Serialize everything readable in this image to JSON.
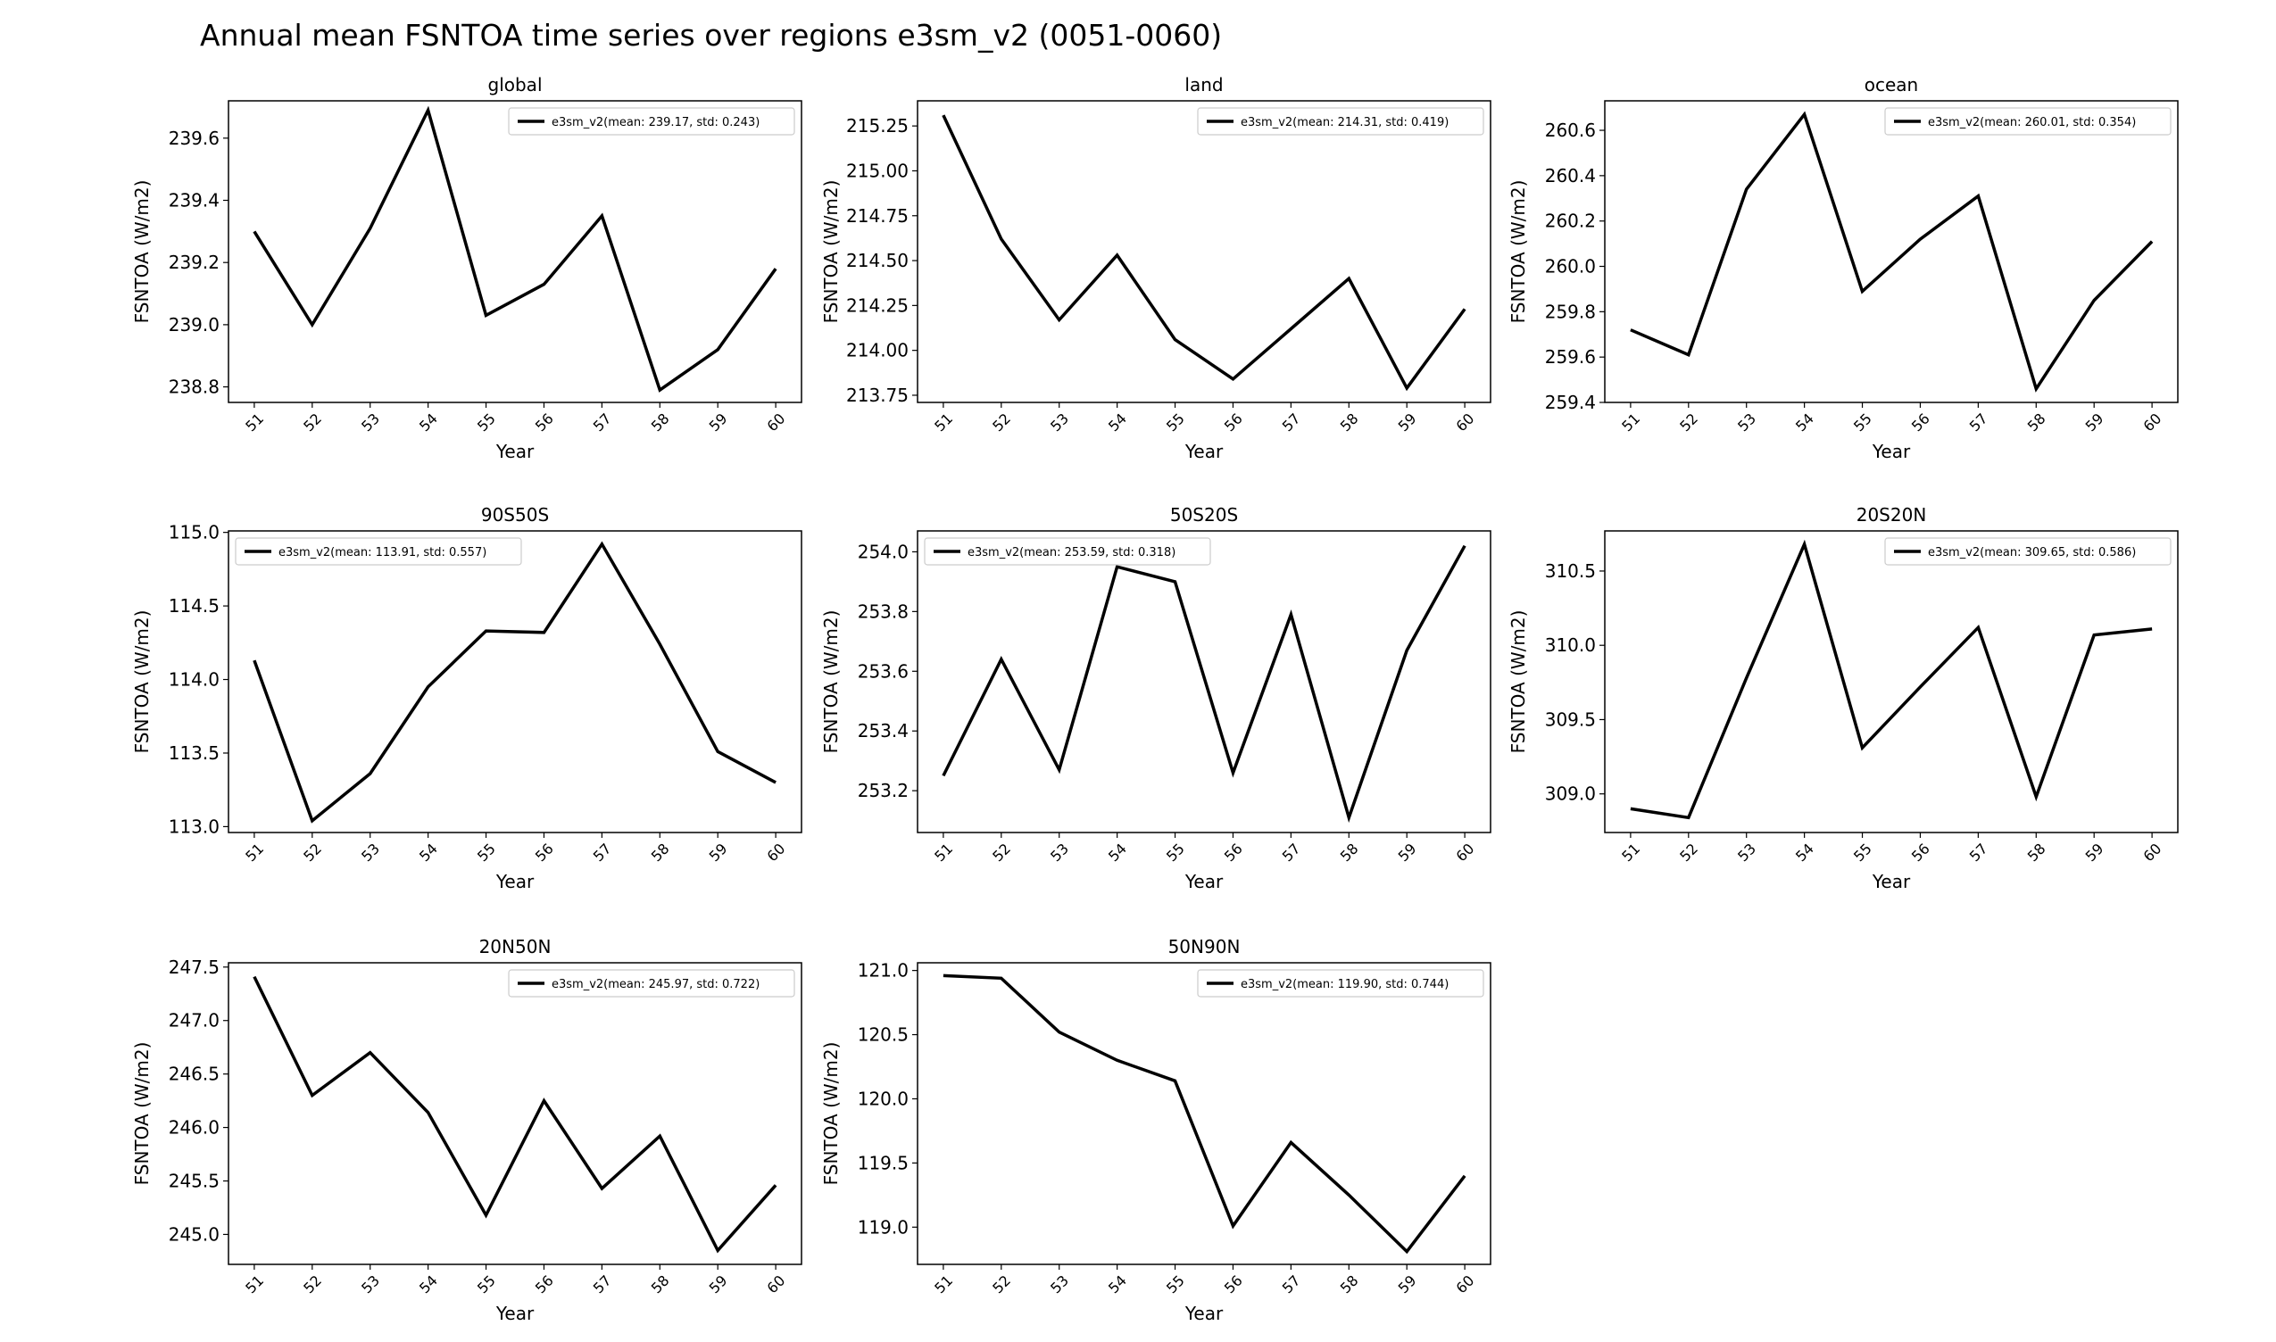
{
  "figure": {
    "title": "Annual mean FSNTOA time series over regions e3sm_v2 (0051-0060)"
  },
  "colors": {
    "line": "#000000",
    "background": "#ffffff",
    "legend_border": "#cccccc"
  },
  "chart_data": [
    {
      "type": "line",
      "title": "global",
      "xlabel": "Year",
      "ylabel": "FSNTOA (W/m2)",
      "x": [
        "51",
        "52",
        "53",
        "54",
        "55",
        "56",
        "57",
        "58",
        "59",
        "60"
      ],
      "series": [
        {
          "name": "e3sm_v2(mean: 239.17, std: 0.243)",
          "values": [
            239.3,
            239.0,
            239.31,
            239.69,
            239.03,
            239.13,
            239.35,
            238.79,
            238.92,
            239.18
          ]
        }
      ],
      "ylim": [
        238.75,
        239.72
      ],
      "yticks": [
        "238.8",
        "239.0",
        "239.2",
        "239.4",
        "239.6"
      ],
      "legend": "top-right",
      "grid": false
    },
    {
      "type": "line",
      "title": "land",
      "xlabel": "Year",
      "ylabel": "FSNTOA (W/m2)",
      "x": [
        "51",
        "52",
        "53",
        "54",
        "55",
        "56",
        "57",
        "58",
        "59",
        "60"
      ],
      "series": [
        {
          "name": "e3sm_v2(mean: 214.31, std: 0.419)",
          "values": [
            215.31,
            214.62,
            214.17,
            214.53,
            214.06,
            213.84,
            214.12,
            214.4,
            213.79,
            214.23
          ]
        }
      ],
      "ylim": [
        213.71,
        215.39
      ],
      "yticks": [
        "213.75",
        "214.00",
        "214.25",
        "214.50",
        "214.75",
        "215.00",
        "215.25"
      ],
      "legend": "top-right",
      "grid": false
    },
    {
      "type": "line",
      "title": "ocean",
      "xlabel": "Year",
      "ylabel": "FSNTOA (W/m2)",
      "x": [
        "51",
        "52",
        "53",
        "54",
        "55",
        "56",
        "57",
        "58",
        "59",
        "60"
      ],
      "series": [
        {
          "name": "e3sm_v2(mean: 260.01, std: 0.354)",
          "values": [
            259.72,
            259.61,
            260.34,
            260.67,
            259.89,
            260.12,
            260.31,
            259.46,
            259.85,
            260.11
          ]
        }
      ],
      "ylim": [
        259.4,
        260.73
      ],
      "yticks": [
        "259.4",
        "259.6",
        "259.8",
        "260.0",
        "260.2",
        "260.4",
        "260.6"
      ],
      "legend": "top-right",
      "grid": false
    },
    {
      "type": "line",
      "title": "90S50S",
      "xlabel": "Year",
      "ylabel": "FSNTOA (W/m2)",
      "x": [
        "51",
        "52",
        "53",
        "54",
        "55",
        "56",
        "57",
        "58",
        "59",
        "60"
      ],
      "series": [
        {
          "name": "e3sm_v2(mean: 113.91, std: 0.557)",
          "values": [
            114.13,
            113.04,
            113.36,
            113.95,
            114.33,
            114.32,
            114.92,
            114.24,
            113.51,
            113.3
          ]
        }
      ],
      "ylim": [
        112.96,
        115.01
      ],
      "yticks": [
        "113.0",
        "113.5",
        "114.0",
        "114.5",
        "115.0"
      ],
      "legend": "top-left",
      "grid": false
    },
    {
      "type": "line",
      "title": "50S20S",
      "xlabel": "Year",
      "ylabel": "FSNTOA (W/m2)",
      "x": [
        "51",
        "52",
        "53",
        "54",
        "55",
        "56",
        "57",
        "58",
        "59",
        "60"
      ],
      "series": [
        {
          "name": "e3sm_v2(mean: 253.59, std: 0.318)",
          "values": [
            253.25,
            253.64,
            253.27,
            253.95,
            253.9,
            253.26,
            253.79,
            253.11,
            253.67,
            254.02
          ]
        }
      ],
      "ylim": [
        253.06,
        254.07
      ],
      "yticks": [
        "253.2",
        "253.4",
        "253.6",
        "253.8",
        "254.0"
      ],
      "legend": "top-left",
      "grid": false
    },
    {
      "type": "line",
      "title": "20S20N",
      "xlabel": "Year",
      "ylabel": "FSNTOA (W/m2)",
      "x": [
        "51",
        "52",
        "53",
        "54",
        "55",
        "56",
        "57",
        "58",
        "59",
        "60"
      ],
      "series": [
        {
          "name": "e3sm_v2(mean: 309.65, std: 0.586)",
          "values": [
            308.9,
            308.84,
            309.78,
            310.68,
            309.31,
            309.72,
            310.12,
            308.98,
            310.07,
            310.11
          ]
        }
      ],
      "ylim": [
        308.74,
        310.77
      ],
      "yticks": [
        "309.0",
        "309.5",
        "310.0",
        "310.5"
      ],
      "legend": "top-right",
      "grid": false
    },
    {
      "type": "line",
      "title": "20N50N",
      "xlabel": "Year",
      "ylabel": "FSNTOA (W/m2)",
      "x": [
        "51",
        "52",
        "53",
        "54",
        "55",
        "56",
        "57",
        "58",
        "59",
        "60"
      ],
      "series": [
        {
          "name": "e3sm_v2(mean: 245.97, std: 0.722)",
          "values": [
            247.41,
            246.3,
            246.7,
            246.14,
            245.18,
            246.25,
            245.43,
            245.92,
            244.85,
            245.46
          ]
        }
      ],
      "ylim": [
        244.72,
        247.54
      ],
      "yticks": [
        "245.0",
        "245.5",
        "246.0",
        "246.5",
        "247.0",
        "247.5"
      ],
      "legend": "top-right",
      "grid": false
    },
    {
      "type": "line",
      "title": "50N90N",
      "xlabel": "Year",
      "ylabel": "FSNTOA (W/m2)",
      "x": [
        "51",
        "52",
        "53",
        "54",
        "55",
        "56",
        "57",
        "58",
        "59",
        "60"
      ],
      "series": [
        {
          "name": "e3sm_v2(mean: 119.90, std: 0.744)",
          "values": [
            120.96,
            120.94,
            120.52,
            120.3,
            120.14,
            119.01,
            119.66,
            119.25,
            118.81,
            119.4
          ]
        }
      ],
      "ylim": [
        118.71,
        121.06
      ],
      "yticks": [
        "119.0",
        "119.5",
        "120.0",
        "120.5",
        "121.0"
      ],
      "legend": "top-right",
      "grid": false
    }
  ]
}
